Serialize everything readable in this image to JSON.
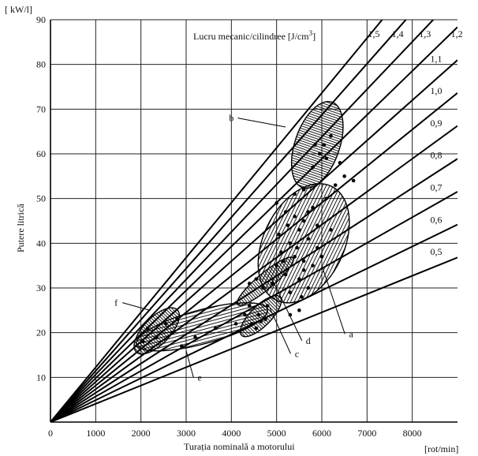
{
  "chart_data": {
    "type": "line",
    "xlabel": "Turația nominală a motorului",
    "ylabel": "Putere litrică",
    "x_unit": "[rot/min]",
    "y_unit": "[ kW/l]",
    "xlim": [
      0,
      9000
    ],
    "ylim": [
      0,
      90
    ],
    "xticks": [
      0,
      1000,
      2000,
      3000,
      4000,
      5000,
      6000,
      7000,
      8000
    ],
    "yticks": [
      10,
      20,
      30,
      40,
      50,
      60,
      70,
      80,
      90
    ],
    "grid": true,
    "family_title": "Lucru mecanic/cilindree [J/cm",
    "family_title_sup": "3",
    "family_title_end": "]",
    "lines": [
      {
        "label": "0,5",
        "value": 0.5
      },
      {
        "label": "0,6",
        "value": 0.6
      },
      {
        "label": "0,7",
        "value": 0.7
      },
      {
        "label": "0,8",
        "value": 0.8
      },
      {
        "label": "0,9",
        "value": 0.9
      },
      {
        "label": "1,0",
        "value": 1.0
      },
      {
        "label": "1,1",
        "value": 1.1
      },
      {
        "label": "1,2",
        "value": 1.2
      },
      {
        "label": "1,3",
        "value": 1.3
      },
      {
        "label": "1,4",
        "value": 1.4
      },
      {
        "label": "1,5",
        "value": 1.5
      }
    ],
    "regions": [
      {
        "label": "a",
        "cx": 5600,
        "cy": 40,
        "rx": 1400,
        "ry": 9,
        "angle": 64,
        "hatch": "horizontal",
        "label_x": 6650,
        "label_y": 19,
        "lead_x": 6000,
        "lead_y": 35
      },
      {
        "label": "b",
        "cx": 5900,
        "cy": 62,
        "rx": 1000,
        "ry": 5,
        "angle": 71,
        "hatch": "vertical",
        "label_x": 4000,
        "label_y": 67.3,
        "lead_x": 5200,
        "lead_y": 66
      },
      {
        "label": "c",
        "cx": 4650,
        "cy": 23.7,
        "rx": 600,
        "ry": 2.3,
        "angle": 45,
        "hatch": "vertical",
        "label_x": 5450,
        "label_y": 14.6,
        "lead_x": 4850,
        "lead_y": 25.5
      },
      {
        "label": "d",
        "cx": 4750,
        "cy": 31.5,
        "rx": 800,
        "ry": 1.8,
        "angle": 40,
        "hatch": "vertical",
        "label_x": 5700,
        "label_y": 17.5,
        "lead_x": 4900,
        "lead_y": 32
      },
      {
        "label": "e",
        "cx": 3350,
        "cy": 21.3,
        "rx": 1500,
        "ry": 3.8,
        "angle": 15,
        "hatch": "horizontal",
        "label_x": 3300,
        "label_y": 9.3,
        "lead_x": 3000,
        "lead_y": 16
      },
      {
        "label": "f",
        "cx": 2350,
        "cy": 20.4,
        "rx": 650,
        "ry": 3,
        "angle": 46,
        "hatch": "vertical",
        "label_x": 1450,
        "label_y": 26,
        "lead_x": 2200,
        "lead_y": 25
      }
    ],
    "points": [
      [
        5000,
        49
      ],
      [
        5200,
        47
      ],
      [
        5400,
        46
      ],
      [
        5600,
        45
      ],
      [
        5800,
        48
      ],
      [
        5500,
        43
      ],
      [
        5300,
        40
      ],
      [
        5700,
        41
      ],
      [
        5900,
        39
      ],
      [
        5100,
        38
      ],
      [
        5400,
        37
      ],
      [
        5600,
        36
      ],
      [
        5800,
        35
      ],
      [
        5000,
        35
      ],
      [
        5200,
        33
      ],
      [
        5500,
        32
      ],
      [
        5700,
        30
      ],
      [
        4900,
        31
      ],
      [
        5300,
        29
      ],
      [
        5600,
        34
      ],
      [
        5900,
        44
      ],
      [
        6100,
        50
      ],
      [
        6300,
        53
      ],
      [
        6500,
        55
      ],
      [
        6100,
        59
      ],
      [
        5800,
        57
      ],
      [
        5600,
        52
      ],
      [
        6200,
        43
      ],
      [
        5400,
        51
      ],
      [
        5700,
        47
      ],
      [
        5050,
        42
      ],
      [
        5250,
        44
      ],
      [
        5450,
        39
      ],
      [
        6000,
        37
      ],
      [
        5150,
        36
      ],
      [
        5550,
        28
      ],
      [
        4700,
        30
      ],
      [
        4550,
        32
      ],
      [
        4400,
        31
      ],
      [
        4600,
        24
      ],
      [
        4450,
        22
      ],
      [
        4750,
        23
      ],
      [
        4300,
        24
      ],
      [
        4550,
        21
      ],
      [
        4800,
        26
      ],
      [
        4400,
        26
      ],
      [
        4650,
        22.5
      ],
      [
        2150,
        21
      ],
      [
        2350,
        19
      ],
      [
        2550,
        22
      ],
      [
        2050,
        18
      ],
      [
        2700,
        20
      ],
      [
        2900,
        17
      ],
      [
        3200,
        19
      ],
      [
        2800,
        23
      ],
      [
        3650,
        21
      ],
      [
        4100,
        22
      ],
      [
        5950,
        60
      ],
      [
        6050,
        62
      ],
      [
        6200,
        64
      ],
      [
        5850,
        62
      ],
      [
        6400,
        58
      ],
      [
        6700,
        54
      ],
      [
        5500,
        25
      ],
      [
        5300,
        24
      ]
    ]
  }
}
